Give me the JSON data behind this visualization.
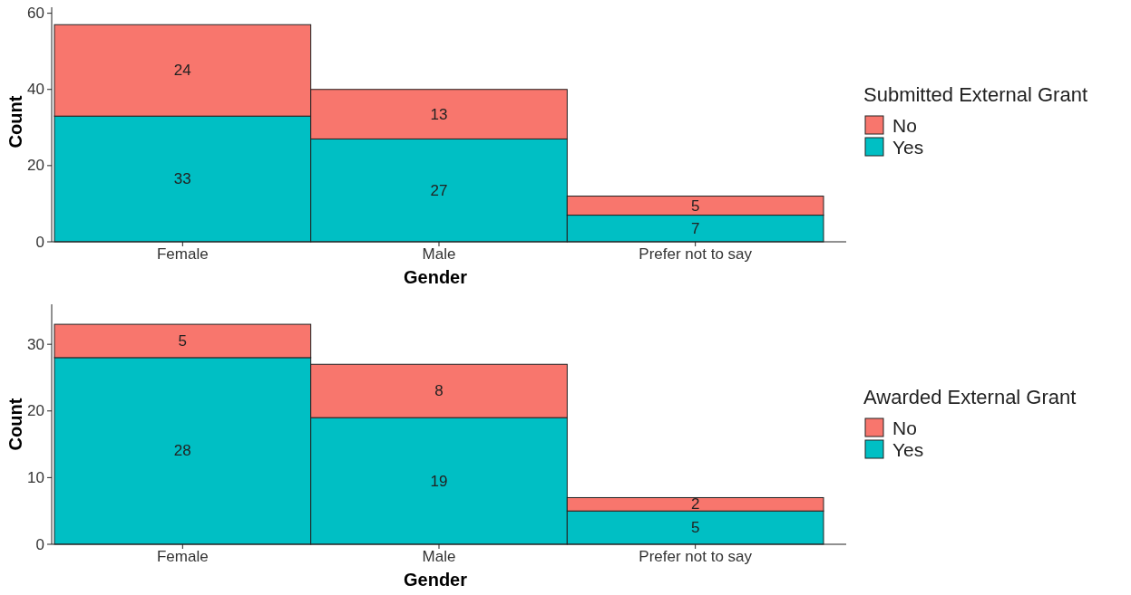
{
  "chart_data": [
    {
      "type": "bar",
      "stacked": true,
      "xlabel": "Gender",
      "ylabel": "Count",
      "legend_title": "Submitted External Grant",
      "legend": "right",
      "data_labels": true,
      "categories": [
        "Female",
        "Male",
        "Prefer not to say"
      ],
      "ylim": [
        0,
        63
      ],
      "yticks": [
        0,
        20,
        40,
        60
      ],
      "series": [
        {
          "name": "Yes",
          "color": "#00bfc4",
          "values": [
            33,
            27,
            7
          ]
        },
        {
          "name": "No",
          "color": "#f8766d",
          "values": [
            24,
            13,
            5
          ]
        }
      ]
    },
    {
      "type": "bar",
      "stacked": true,
      "xlabel": "Gender",
      "ylabel": "Count",
      "legend_title": "Awarded External Grant",
      "legend": "right",
      "data_labels": true,
      "categories": [
        "Female",
        "Male",
        "Prefer not to say"
      ],
      "ylim": [
        0,
        36
      ],
      "yticks": [
        0,
        10,
        20,
        30
      ],
      "series": [
        {
          "name": "Yes",
          "color": "#00bfc4",
          "values": [
            28,
            19,
            5
          ]
        },
        {
          "name": "No",
          "color": "#f8766d",
          "values": [
            5,
            8,
            2
          ]
        }
      ]
    }
  ]
}
